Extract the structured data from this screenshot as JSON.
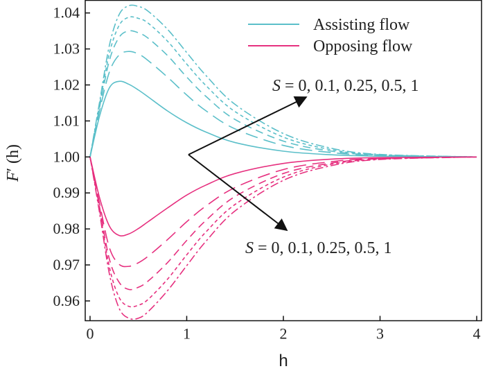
{
  "chart_data": {
    "type": "line",
    "xlabel": "h",
    "ylabel": "F′ (h)",
    "xlim": [
      -0.05,
      4.05
    ],
    "ylim": [
      0.9545,
      1.0435
    ],
    "xticks": [
      "0",
      "1",
      "2",
      "3",
      "4"
    ],
    "yticks": [
      "0.96",
      "0.97",
      "0.98",
      "0.99",
      "1.00",
      "1.01",
      "1.02",
      "1.03",
      "1.04"
    ],
    "legend": {
      "position": "top-right",
      "entries": [
        {
          "label": "Assisting flow",
          "color": "#5bbfc9"
        },
        {
          "label": "Opposing flow",
          "color": "#e6307f"
        }
      ]
    },
    "annotations": [
      {
        "text": "S = 0, 0.1, 0.25, 0.5, 1",
        "target": "assisting"
      },
      {
        "text": "S = 0, 0.1, 0.25, 0.5, 1",
        "target": "opposing"
      }
    ],
    "parameter": "S",
    "series": [
      {
        "group": "Assisting flow",
        "S": 0,
        "color": "#5bbfc9",
        "dash": "solid",
        "x": [
          0,
          0.1,
          0.2,
          0.3,
          0.4,
          0.5,
          0.6,
          0.8,
          1.0,
          1.2,
          1.5,
          2.0,
          2.5,
          3.0,
          4.0
        ],
        "y": [
          1.0,
          1.0115,
          1.0192,
          1.021,
          1.0202,
          1.0186,
          1.0167,
          1.0128,
          1.0095,
          1.0069,
          1.004,
          1.0016,
          1.0006,
          1.0002,
          1.0
        ]
      },
      {
        "group": "Assisting flow",
        "S": 0.1,
        "color": "#5bbfc9",
        "dash": "long-dash",
        "x": [
          0,
          0.1,
          0.2,
          0.3,
          0.4,
          0.5,
          0.6,
          0.8,
          1.0,
          1.2,
          1.5,
          2.0,
          2.5,
          3.0,
          4.0
        ],
        "y": [
          1.0,
          1.013,
          1.0236,
          1.0283,
          1.0293,
          1.0286,
          1.0268,
          1.0222,
          1.0172,
          1.0128,
          1.0078,
          1.0032,
          1.0012,
          1.0004,
          1.0
        ]
      },
      {
        "group": "Assisting flow",
        "S": 0.25,
        "color": "#5bbfc9",
        "dash": "dash",
        "x": [
          0,
          0.1,
          0.2,
          0.3,
          0.4,
          0.5,
          0.6,
          0.8,
          1.0,
          1.2,
          1.5,
          2.0,
          2.5,
          3.0,
          4.0
        ],
        "y": [
          1.0,
          1.014,
          1.0268,
          1.0332,
          1.035,
          1.0345,
          1.033,
          1.0282,
          1.0222,
          1.0168,
          1.0104,
          1.0044,
          1.0016,
          1.0005,
          1.0
        ]
      },
      {
        "group": "Assisting flow",
        "S": 0.5,
        "color": "#5bbfc9",
        "dash": "dot",
        "x": [
          0,
          0.1,
          0.2,
          0.3,
          0.4,
          0.5,
          0.6,
          0.8,
          1.0,
          1.2,
          1.5,
          2.0,
          2.5,
          3.0,
          4.0
        ],
        "y": [
          1.0,
          1.0148,
          1.0288,
          1.0365,
          1.0388,
          1.0385,
          1.0372,
          1.0322,
          1.0258,
          1.0198,
          1.0126,
          1.0055,
          1.002,
          1.0006,
          1.0
        ]
      },
      {
        "group": "Assisting flow",
        "S": 1,
        "color": "#5bbfc9",
        "dash": "dash-dot",
        "x": [
          0,
          0.1,
          0.2,
          0.3,
          0.4,
          0.5,
          0.6,
          0.8,
          1.0,
          1.2,
          1.5,
          2.0,
          2.5,
          3.0,
          4.0
        ],
        "y": [
          1.0,
          1.0155,
          1.031,
          1.0395,
          1.042,
          1.0418,
          1.0405,
          1.0355,
          1.029,
          1.0226,
          1.0146,
          1.0065,
          1.0024,
          1.0007,
          1.0
        ]
      },
      {
        "group": "Opposing flow",
        "S": 0,
        "color": "#e6307f",
        "dash": "solid",
        "x": [
          0,
          0.1,
          0.2,
          0.3,
          0.4,
          0.5,
          0.6,
          0.8,
          1.0,
          1.2,
          1.5,
          2.0,
          2.5,
          3.0,
          4.0
        ],
        "y": [
          1.0,
          0.9885,
          0.9808,
          0.9782,
          0.9786,
          0.9801,
          0.982,
          0.9858,
          0.9894,
          0.9922,
          0.9954,
          0.9982,
          0.9994,
          0.9998,
          1.0
        ]
      },
      {
        "group": "Opposing flow",
        "S": 0.1,
        "color": "#e6307f",
        "dash": "long-dash",
        "x": [
          0,
          0.1,
          0.2,
          0.3,
          0.4,
          0.5,
          0.6,
          0.8,
          1.0,
          1.2,
          1.5,
          2.0,
          2.5,
          3.0,
          4.0
        ],
        "y": [
          1.0,
          0.9868,
          0.9748,
          0.9702,
          0.9696,
          0.9706,
          0.9724,
          0.977,
          0.982,
          0.9864,
          0.9915,
          0.9965,
          0.9987,
          0.9996,
          1.0
        ]
      },
      {
        "group": "Opposing flow",
        "S": 0.25,
        "color": "#e6307f",
        "dash": "dash",
        "x": [
          0,
          0.1,
          0.2,
          0.3,
          0.4,
          0.5,
          0.6,
          0.8,
          1.0,
          1.2,
          1.5,
          2.0,
          2.5,
          3.0,
          4.0
        ],
        "y": [
          1.0,
          0.9858,
          0.9716,
          0.9652,
          0.9632,
          0.9638,
          0.9655,
          0.9706,
          0.9768,
          0.9824,
          0.989,
          0.9954,
          0.9983,
          0.9995,
          1.0
        ]
      },
      {
        "group": "Opposing flow",
        "S": 0.5,
        "color": "#e6307f",
        "dash": "dot",
        "x": [
          0,
          0.1,
          0.2,
          0.3,
          0.4,
          0.5,
          0.6,
          0.8,
          1.0,
          1.2,
          1.5,
          2.0,
          2.5,
          3.0,
          4.0
        ],
        "y": [
          1.0,
          0.985,
          0.9694,
          0.961,
          0.9585,
          0.9588,
          0.9604,
          0.966,
          0.9728,
          0.9792,
          0.9868,
          0.9944,
          0.998,
          0.9994,
          1.0
        ]
      },
      {
        "group": "Opposing flow",
        "S": 1,
        "color": "#e6307f",
        "dash": "dash-dot",
        "x": [
          0,
          0.1,
          0.2,
          0.3,
          0.4,
          0.5,
          0.6,
          0.8,
          1.0,
          1.2,
          1.5,
          2.0,
          2.5,
          3.0,
          4.0
        ],
        "y": [
          1.0,
          0.9842,
          0.9675,
          0.958,
          0.9552,
          0.9552,
          0.957,
          0.9628,
          0.9698,
          0.9766,
          0.985,
          0.9935,
          0.9976,
          0.9993,
          1.0
        ]
      }
    ]
  }
}
